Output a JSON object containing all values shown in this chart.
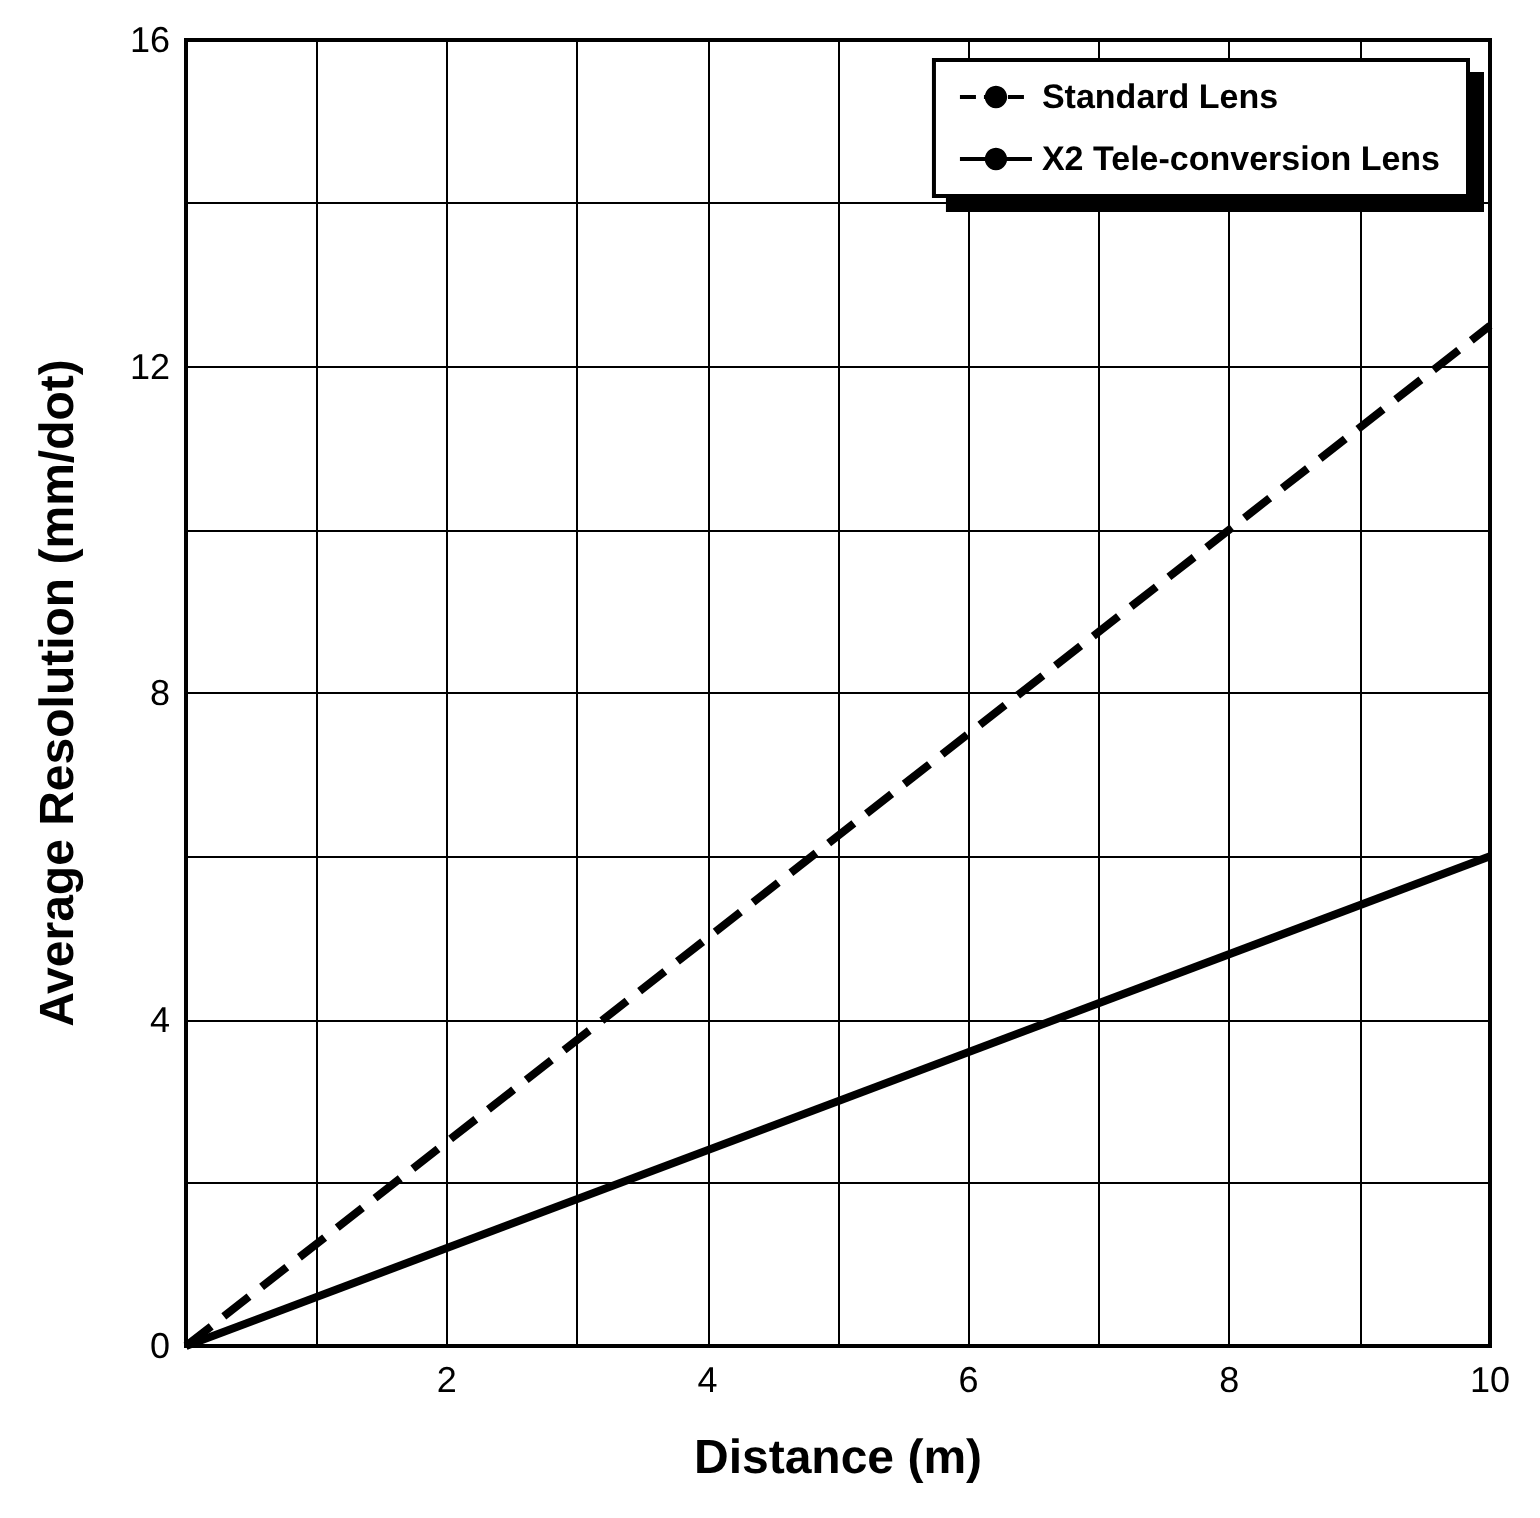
{
  "chart_data": {
    "type": "line",
    "xlabel": "Distance (m)",
    "ylabel": "Average Resolution (mm/dot)",
    "x": [
      0,
      10
    ],
    "series": [
      {
        "name": "Standard Lens",
        "color": "#000000",
        "line_style": "dashed",
        "values": [
          0,
          12.5
        ]
      },
      {
        "name": "X2 Tele-conversion Lens",
        "color": "#000000",
        "line_style": "solid",
        "values": [
          0,
          6
        ]
      }
    ],
    "xlim": [
      0,
      10
    ],
    "ylim": [
      0,
      16
    ],
    "xticks": [
      {
        "value": 0,
        "label": null
      },
      {
        "value": 1,
        "label": null
      },
      2,
      {
        "value": 3,
        "label": null
      },
      4,
      {
        "value": 5,
        "label": null
      },
      6,
      {
        "value": 7,
        "label": null
      },
      8,
      {
        "value": 9,
        "label": null
      },
      10
    ],
    "yticks": [
      0,
      {
        "value": 2,
        "label": null
      },
      4,
      {
        "value": 6,
        "label": null
      },
      8,
      {
        "value": 10,
        "label": null
      },
      12,
      {
        "value": 14,
        "label": null
      },
      16
    ],
    "grid": true,
    "legend": "top right",
    "marker": "none"
  }
}
